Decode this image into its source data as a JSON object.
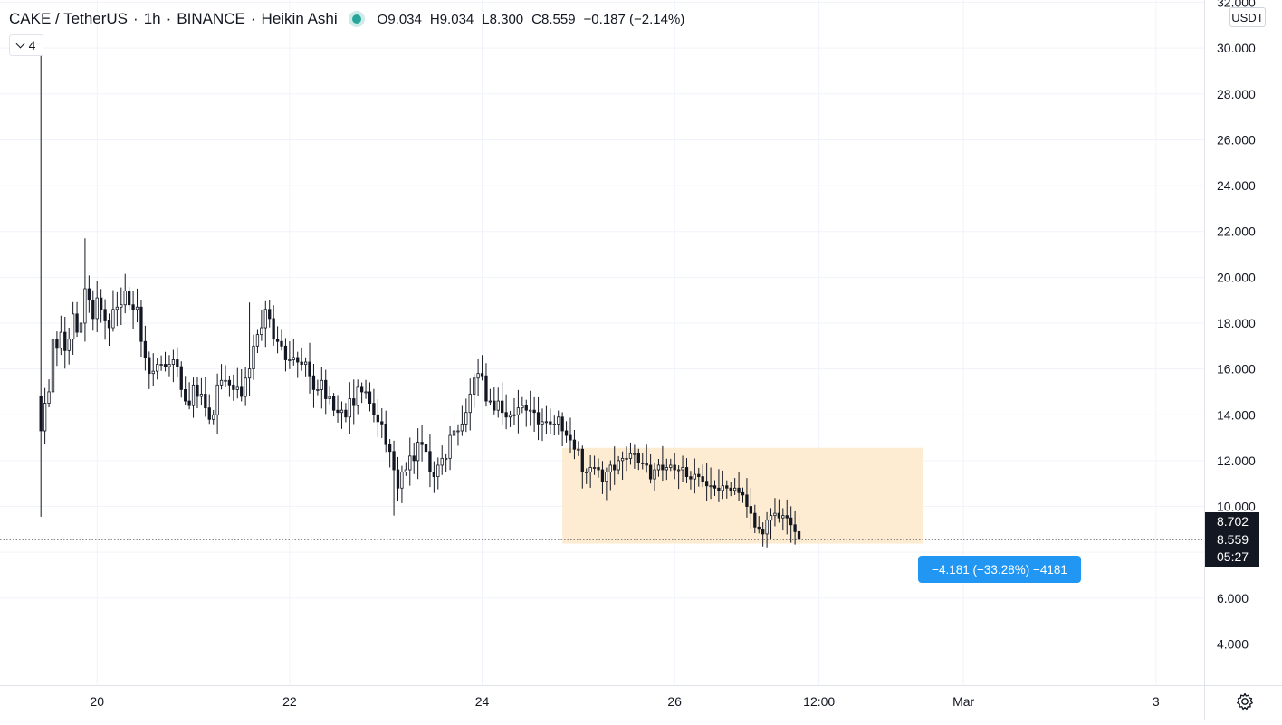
{
  "legend": {
    "symbol": "CAKE / TetherUS",
    "interval": "1h",
    "exchange": "BINANCE",
    "chart_style": "Heikin Ashi",
    "ohlc": {
      "o_label": "O",
      "o_value": "9.034",
      "h_label": "H",
      "h_value": "9.034",
      "l_label": "L",
      "l_value": "8.300",
      "c_label": "C",
      "c_value": "8.559",
      "change": "−0.187 (−2.14%)"
    },
    "indicators_count": "4"
  },
  "price_scale": {
    "currency": "USDT",
    "last_price": "8.559",
    "crosshair_price": "8.702",
    "countdown": "05:27"
  },
  "measure": {
    "label": "−4.181 (−33.28%) −4181",
    "price_top": 12.56,
    "price_bottom": 8.38,
    "time_start": 140,
    "time_end": 230
  },
  "colors": {
    "grid": "#f0f3fa",
    "axis": "#e0e3eb",
    "candle": "#131722",
    "measure_fill": "#fdecd2",
    "measure_label": "#2196f3",
    "tag_bg": "#131722",
    "status_dot": "#26a69a"
  },
  "chart_data": {
    "type": "candlestick",
    "style": "Heikin Ashi",
    "x_unit": "hours since 19 Feb 00:00",
    "x_ticks": [
      {
        "t": 24,
        "label": "20"
      },
      {
        "t": 72,
        "label": "22"
      },
      {
        "t": 120,
        "label": "24"
      },
      {
        "t": 168,
        "label": "26"
      },
      {
        "t": 204,
        "label": "12:00"
      },
      {
        "t": 240,
        "label": "Mar"
      },
      {
        "t": 288,
        "label": "3"
      }
    ],
    "y_ticks": [
      {
        "v": 4,
        "label": "4.000"
      },
      {
        "v": 6,
        "label": "6.000"
      },
      {
        "v": 10,
        "label": "10.000"
      },
      {
        "v": 12,
        "label": "12.000"
      },
      {
        "v": 14,
        "label": "14.000"
      },
      {
        "v": 16,
        "label": "16.000"
      },
      {
        "v": 18,
        "label": "18.000"
      },
      {
        "v": 20,
        "label": "20.000"
      },
      {
        "v": 22,
        "label": "22.000"
      },
      {
        "v": 24,
        "label": "24.000"
      },
      {
        "v": 26,
        "label": "26.000"
      },
      {
        "v": 28,
        "label": "28.000"
      },
      {
        "v": 30,
        "label": "30.000"
      },
      {
        "v": 32,
        "label": "32.000"
      }
    ],
    "y_range": [
      2.2,
      32.1
    ],
    "x_range": [
      -0.2,
      300
    ],
    "last_price": 8.559,
    "grid": true,
    "first_hour": 10,
    "closes": [
      13.3,
      14.5,
      15.0,
      17.3,
      16.9,
      17.6,
      16.8,
      17.3,
      18.4,
      17.6,
      18.0,
      19.5,
      19.0,
      18.2,
      19.1,
      18.6,
      18.1,
      17.8,
      18.6,
      18.7,
      18.8,
      19.4,
      18.8,
      18.6,
      18.7,
      17.2,
      16.5,
      15.8,
      15.9,
      16.2,
      16.2,
      16.1,
      16.2,
      16.4,
      16.1,
      15.1,
      14.6,
      14.4,
      15.3,
      14.8,
      14.9,
      14.3,
      13.8,
      14.0,
      15.3,
      15.5,
      15.5,
      15.3,
      15.1,
      15.2,
      14.8,
      15.6,
      16.0,
      17.0,
      17.5,
      17.8,
      18.6,
      18.2,
      17.3,
      17.2,
      17.0,
      16.4,
      16.4,
      16.5,
      16.3,
      16.2,
      16.3,
      15.7,
      15.1,
      15.1,
      15.5,
      14.7,
      14.8,
      14.2,
      14.1,
      14.2,
      13.9,
      14.7,
      14.4,
      15.2,
      15.0,
      15.0,
      14.5,
      14.0,
      13.7,
      13.6,
      12.7,
      12.4,
      11.6,
      10.8,
      11.5,
      11.6,
      12.2,
      12.0,
      12.8,
      12.7,
      12.4,
      11.5,
      11.3,
      11.8,
      12.1,
      12.1,
      13.1,
      13.3,
      13.3,
      13.6,
      14.1,
      14.9,
      15.6,
      15.8,
      15.7,
      14.6,
      14.6,
      14.2,
      14.6,
      14.1,
      13.9,
      14.0,
      14.0,
      14.3,
      14.4,
      14.2,
      14.2,
      14.1,
      13.6,
      13.7,
      13.7,
      13.6,
      13.6,
      13.9,
      13.3,
      13.1,
      12.9,
      12.5,
      12.5,
      11.5,
      11.5,
      11.7,
      11.7,
      11.6,
      11.1,
      11.5,
      11.8,
      11.6,
      12.0,
      12.1,
      12.1,
      12.3,
      12.3,
      11.9,
      11.9,
      11.8,
      11.2,
      11.6,
      11.8,
      11.6,
      11.7,
      11.8,
      11.6,
      11.6,
      11.7,
      11.3,
      11.2,
      11.4,
      11.3,
      11.1,
      10.9,
      10.9,
      10.8,
      10.7,
      10.9,
      10.8,
      10.7,
      10.8,
      10.6,
      10.5,
      10.0,
      9.7,
      9.1,
      9.0,
      8.8,
      9.4,
      9.6,
      9.7,
      9.5,
      9.6,
      9.5,
      9.2,
      8.9,
      8.56
    ]
  }
}
